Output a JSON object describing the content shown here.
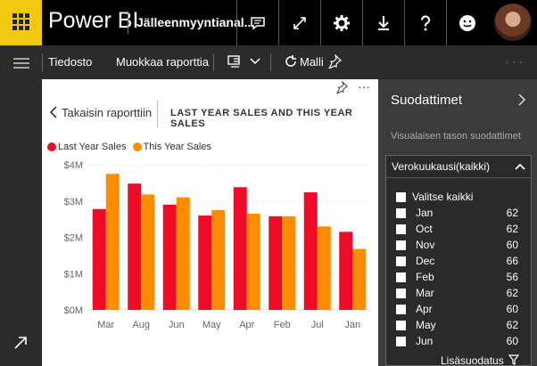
{
  "app": {
    "brand": "Power BI",
    "report_title": "Jälleenmyyntianal..."
  },
  "command_bar": {
    "file": "Tiedosto",
    "edit": "Muokkaa raporttia",
    "template": "Malli",
    "more": "· · ·"
  },
  "visual": {
    "back_label": "Takaisin raporttiin",
    "more": "···"
  },
  "colors": {
    "accent": "#f2c811",
    "last_year": "#ed0b25",
    "this_year": "#fd8c00"
  },
  "chart_data": {
    "type": "bar",
    "title": "LAST YEAR SALES AND THIS YEAR SALES",
    "categories": [
      "Mar",
      "Aug",
      "Jun",
      "May",
      "Apr",
      "Feb",
      "Jul",
      "Jan"
    ],
    "series": [
      {
        "name": "Last Year Sales",
        "values": [
          2.78,
          3.48,
          2.9,
          2.6,
          3.38,
          2.58,
          3.24,
          2.15
        ]
      },
      {
        "name": "This Year Sales",
        "values": [
          3.75,
          3.18,
          3.1,
          2.75,
          2.65,
          2.58,
          2.3,
          1.68
        ]
      }
    ],
    "yticks": [
      "$0M",
      "$1M",
      "$2M",
      "$3M",
      "$4M"
    ],
    "ylim": [
      0,
      4
    ],
    "grid": true,
    "legend": "top-left"
  },
  "filters": {
    "title": "Suodattimet",
    "subtitle": "Visualaisen tason suodattimet",
    "card_title": "Verokuukausi(kaikki)",
    "select_all": "Valitse kaikki",
    "items": [
      {
        "label": "Jan",
        "count": "62"
      },
      {
        "label": "Oct",
        "count": "62"
      },
      {
        "label": "Nov",
        "count": "60"
      },
      {
        "label": "Dec",
        "count": "66"
      },
      {
        "label": "Feb",
        "count": "56"
      },
      {
        "label": "Mar",
        "count": "62"
      },
      {
        "label": "Apr",
        "count": "60"
      },
      {
        "label": "May",
        "count": "62"
      },
      {
        "label": "Jun",
        "count": "60"
      }
    ],
    "more_filters": "Lisäsuodatus"
  }
}
